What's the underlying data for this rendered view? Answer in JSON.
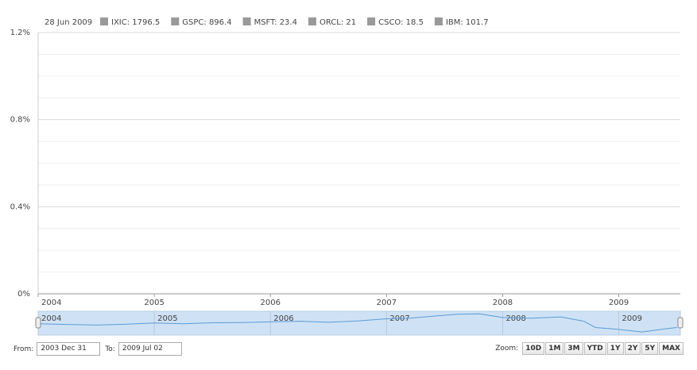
{
  "chart_data": {
    "type": "line",
    "legend_date": "28 Jun 2009",
    "legend": [
      {
        "label": "IXIC: 1796.5",
        "color": "#999999"
      },
      {
        "label": "GSPC: 896.4",
        "color": "#999999"
      },
      {
        "label": "MSFT: 23.4",
        "color": "#999999"
      },
      {
        "label": "ORCL: 21",
        "color": "#999999"
      },
      {
        "label": "CSCO: 18.5",
        "color": "#999999"
      },
      {
        "label": "IBM: 101.7",
        "color": "#999999"
      }
    ],
    "ylim": [
      0,
      1.2
    ],
    "yticks": [
      {
        "value": 0,
        "label": "0%"
      },
      {
        "value": 0.4,
        "label": "0.4%"
      },
      {
        "value": 0.8,
        "label": "0.8%"
      },
      {
        "value": 1.2,
        "label": "1.2%"
      }
    ],
    "minor_yticks": [
      0.1,
      0.2,
      0.3,
      0.5,
      0.6,
      0.7,
      0.9,
      1.0,
      1.1
    ],
    "grid": true,
    "xlim": [
      2004,
      2009.53
    ],
    "xticks": [
      2004,
      2005,
      2006,
      2007,
      2008,
      2009
    ],
    "navigator": {
      "color": "#5b9bd5",
      "ylim": [
        1100,
        3000
      ],
      "x": [
        2004,
        2004.25,
        2004.5,
        2004.75,
        2005,
        2005.25,
        2005.5,
        2005.75,
        2006,
        2006.25,
        2006.5,
        2006.75,
        2007,
        2007.2,
        2007.4,
        2007.6,
        2007.8,
        2008,
        2008.25,
        2008.5,
        2008.7,
        2008.8,
        2009,
        2009.2,
        2009.4,
        2009.5
      ],
      "values": [
        2000,
        1950,
        1900,
        1960,
        2060,
        2000,
        2080,
        2100,
        2150,
        2200,
        2120,
        2230,
        2400,
        2450,
        2600,
        2750,
        2800,
        2500,
        2450,
        2550,
        2200,
        1700,
        1550,
        1350,
        1600,
        1700
      ]
    }
  },
  "range": {
    "from_label": "From:",
    "from": "2003 Dec 31",
    "to_label": "To:",
    "to": "2009 Jul 02"
  },
  "zoom": {
    "label": "Zoom:",
    "buttons": [
      "10D",
      "1M",
      "3M",
      "YTD",
      "1Y",
      "2Y",
      "5Y",
      "MAX"
    ]
  }
}
